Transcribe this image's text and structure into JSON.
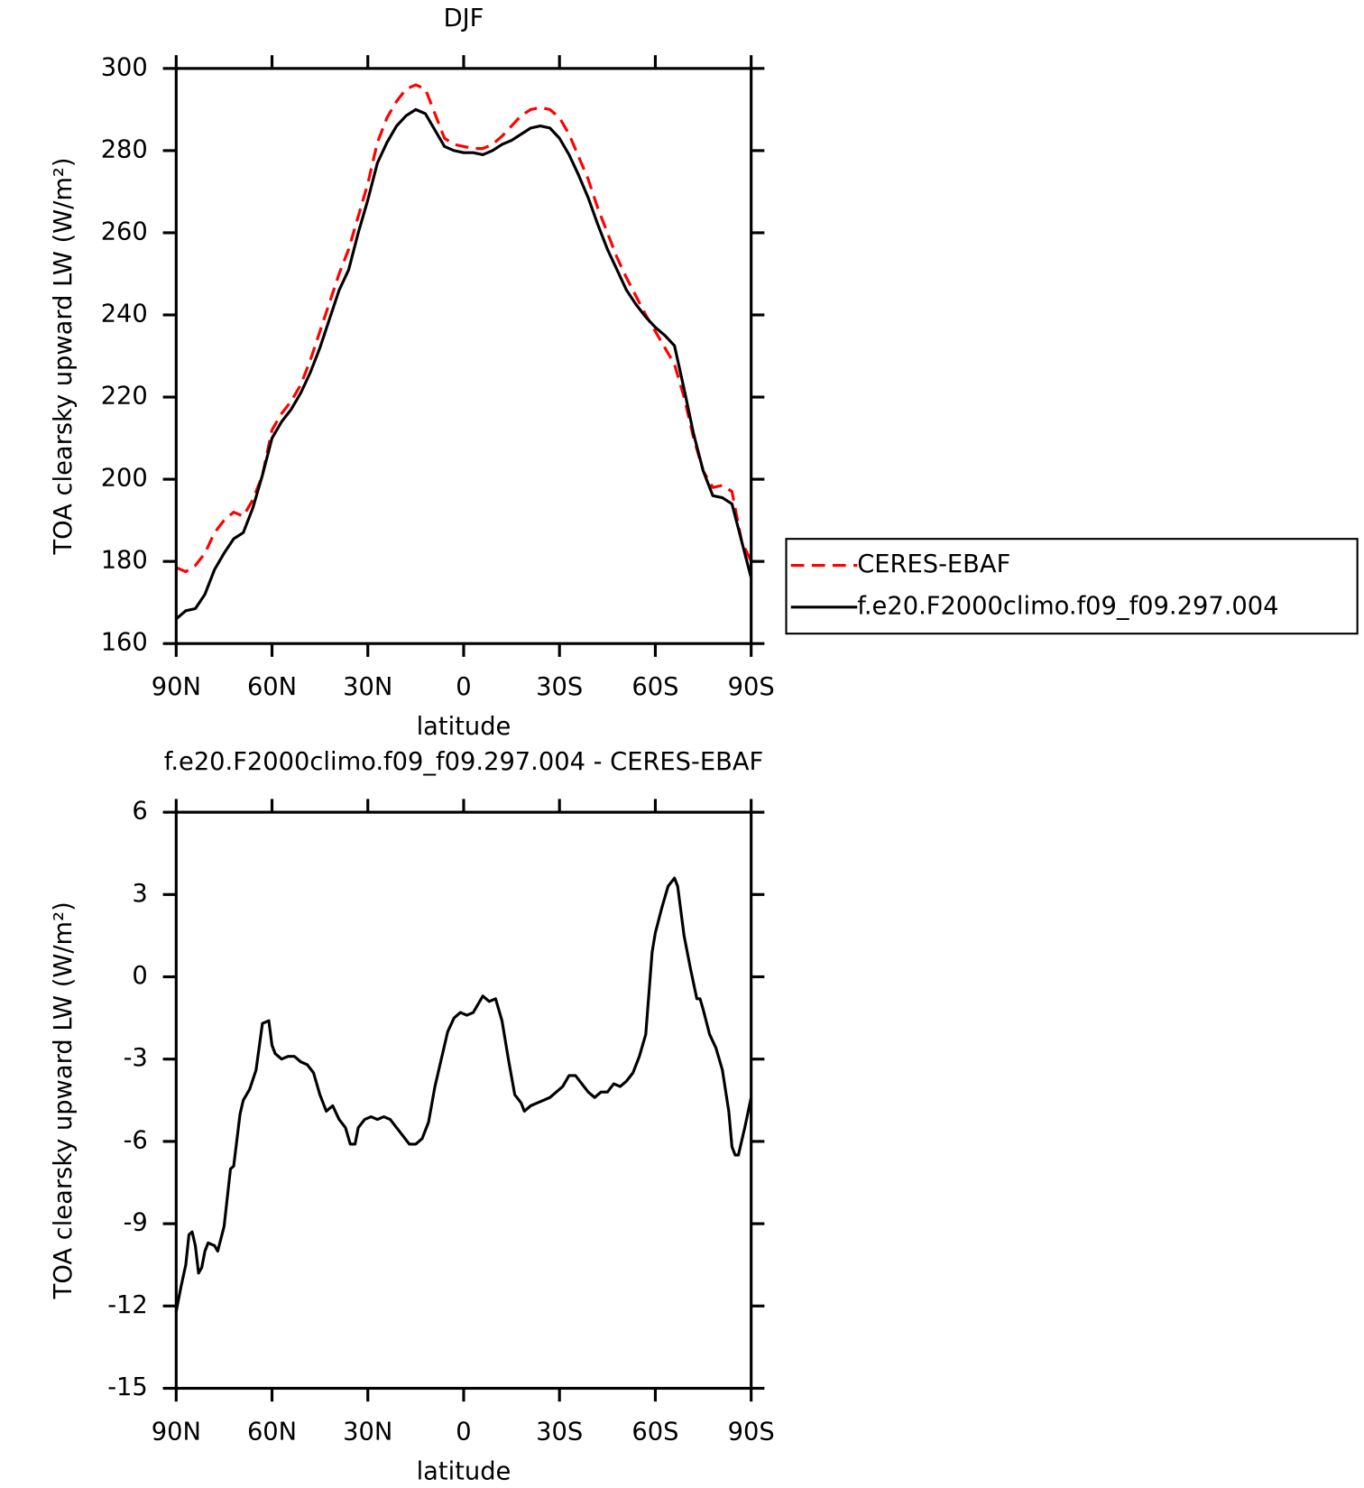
{
  "chart_data": [
    {
      "type": "line",
      "title": "DJF",
      "xlabel": "latitude",
      "ylabel": "TOA clearsky upward LW (W/m²)",
      "x": [
        90,
        87,
        84,
        81,
        78,
        75,
        72,
        69,
        66,
        63,
        60,
        57,
        54,
        51,
        48,
        45,
        42,
        39,
        36,
        33,
        30,
        27,
        24,
        21,
        18,
        15,
        12,
        9,
        6,
        3,
        0,
        -3,
        -6,
        -9,
        -12,
        -15,
        -18,
        -21,
        -24,
        -27,
        -30,
        -33,
        -36,
        -39,
        -42,
        -45,
        -48,
        -51,
        -54,
        -57,
        -60,
        -63,
        -66,
        -69,
        -72,
        -75,
        -78,
        -81,
        -84,
        -87,
        -90
      ],
      "series": [
        {
          "name": "CERES-EBAF",
          "color": "#ff0000",
          "style": "dashed",
          "values": [
            178.5,
            177.5,
            179,
            182,
            187,
            190,
            192,
            191,
            195,
            201,
            212,
            216,
            219,
            223,
            229,
            236,
            243,
            250,
            256,
            264,
            272,
            282,
            288,
            292,
            295,
            296,
            295,
            289,
            283,
            281.5,
            281,
            280.5,
            280.5,
            281.5,
            283.5,
            286,
            288.5,
            290,
            290.5,
            290,
            288,
            284,
            278.5,
            273,
            266,
            260,
            254,
            249,
            244.5,
            240,
            236,
            232,
            228,
            220,
            210,
            202,
            198,
            198.5,
            197,
            185,
            180
          ]
        },
        {
          "name": "f.e20.F2000climo.f09_f09.297.004",
          "color": "#000000",
          "style": "solid",
          "values": [
            166,
            168,
            168.5,
            172,
            178,
            182,
            185.5,
            187,
            193,
            201,
            210,
            214,
            217,
            221,
            226,
            232,
            239,
            246,
            251,
            260,
            268,
            277,
            282,
            286,
            288.5,
            290,
            289,
            285,
            281,
            280,
            279.5,
            279.5,
            279,
            280,
            281.5,
            282.5,
            284,
            285.5,
            286,
            285.5,
            283,
            279,
            274,
            268.5,
            262,
            256,
            251,
            246,
            242.5,
            239.5,
            237,
            235,
            232.5,
            222,
            211,
            202,
            196,
            195.5,
            194,
            185,
            176
          ]
        }
      ],
      "xlim": [
        90,
        -90
      ],
      "ylim": [
        160,
        300
      ],
      "xticks": [
        {
          "value": 90,
          "label": "90N"
        },
        {
          "value": 60,
          "label": "60N"
        },
        {
          "value": 30,
          "label": "30N"
        },
        0,
        {
          "value": -30,
          "label": "30S"
        },
        {
          "value": -60,
          "label": "60S"
        },
        {
          "value": -90,
          "label": "90S"
        }
      ],
      "yticks": [
        160,
        180,
        200,
        220,
        240,
        260,
        280,
        300
      ],
      "legend": "right"
    },
    {
      "type": "line",
      "title": "f.e20.F2000climo.f09_f09.297.004 - CERES-EBAF",
      "xlabel": "latitude",
      "ylabel": "TOA clearsky upward LW (W/m²)",
      "x": [
        90,
        88.5,
        87,
        86,
        85,
        84,
        83,
        82,
        81,
        80,
        78,
        77,
        75,
        73,
        72,
        70,
        69,
        67,
        65,
        63,
        61,
        60,
        59,
        57,
        55,
        53,
        51,
        49,
        47,
        45,
        43,
        41,
        39,
        37,
        35.5,
        34,
        33,
        31,
        29,
        27,
        25,
        23,
        21,
        19,
        17,
        15,
        13,
        11,
        9,
        7,
        5,
        3,
        1,
        -1,
        -3,
        -5,
        -6,
        -8,
        -10,
        -12,
        -14,
        -16,
        -18,
        -19,
        -21,
        -23,
        -25,
        -27,
        -29,
        -31,
        -33,
        -35,
        -37,
        -39,
        -41,
        -43,
        -45,
        -47,
        -49,
        -51,
        -53,
        -55,
        -57,
        -58,
        -59,
        -60,
        -62,
        -64,
        -66,
        -67,
        -69,
        -71,
        -73,
        -74,
        -75,
        -77,
        -79,
        -81,
        -83,
        -84,
        -85,
        -86,
        -87,
        -88,
        -90
      ],
      "values": [
        -12.2,
        -11.3,
        -10.5,
        -9.4,
        -9.3,
        -9.8,
        -10.8,
        -10.6,
        -10.0,
        -9.7,
        -9.8,
        -10.0,
        -9.1,
        -7.0,
        -6.9,
        -5.0,
        -4.5,
        -4.1,
        -3.4,
        -1.7,
        -1.6,
        -2.5,
        -2.8,
        -3.0,
        -2.9,
        -2.9,
        -3.1,
        -3.2,
        -3.5,
        -4.3,
        -4.9,
        -4.7,
        -5.2,
        -5.5,
        -6.1,
        -6.1,
        -5.5,
        -5.2,
        -5.1,
        -5.2,
        -5.1,
        -5.2,
        -5.5,
        -5.8,
        -6.1,
        -6.1,
        -5.9,
        -5.3,
        -4.0,
        -3.0,
        -2.0,
        -1.5,
        -1.3,
        -1.4,
        -1.3,
        -0.9,
        -0.7,
        -0.9,
        -0.8,
        -1.6,
        -3.0,
        -4.3,
        -4.6,
        -4.9,
        -4.7,
        -4.6,
        -4.5,
        -4.4,
        -4.2,
        -4.0,
        -3.6,
        -3.6,
        -3.9,
        -4.2,
        -4.4,
        -4.2,
        -4.2,
        -3.9,
        -4.0,
        -3.8,
        -3.5,
        -2.9,
        -2.1,
        -0.6,
        0.9,
        1.6,
        2.5,
        3.3,
        3.6,
        3.3,
        1.5,
        0.3,
        -0.8,
        -0.8,
        -1.2,
        -2.1,
        -2.6,
        -3.4,
        -4.9,
        -6.2,
        -6.5,
        -6.5,
        -6.0,
        -5.5,
        -4.4
      ],
      "color": "#000000",
      "xlim": [
        90,
        -90
      ],
      "ylim": [
        -15,
        6
      ],
      "xticks": [
        {
          "value": 90,
          "label": "90N"
        },
        {
          "value": 60,
          "label": "60N"
        },
        {
          "value": 30,
          "label": "30N"
        },
        0,
        {
          "value": -30,
          "label": "30S"
        },
        {
          "value": -60,
          "label": "60S"
        },
        {
          "value": -90,
          "label": "90S"
        }
      ],
      "yticks": [
        -15,
        -12,
        -9,
        -6,
        -3,
        0,
        3,
        6
      ]
    }
  ]
}
